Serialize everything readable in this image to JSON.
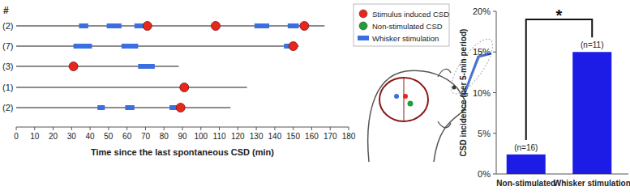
{
  "chart_data": [
    {
      "type": "timeline",
      "row_header": "#",
      "x_label": "Time since the last spontaneous CSD (min)",
      "xlim": [
        0,
        180
      ],
      "xticks": [
        0,
        10,
        20,
        30,
        40,
        50,
        60,
        70,
        80,
        90,
        100,
        110,
        120,
        130,
        140,
        150,
        160,
        170,
        180
      ],
      "series": [
        {
          "name": "Stimulus induced CSD",
          "color": "#e8261c",
          "marker": "circle"
        },
        {
          "name": "Non-stimulated CSD",
          "color": "#1f9e3c",
          "marker": "circle"
        },
        {
          "name": "Whisker stimulation",
          "color": "#3a6fe2",
          "marker": "rect"
        }
      ],
      "rows": [
        {
          "label": "(2)",
          "line_end": 167,
          "stimulation": [
            [
              34,
              39
            ],
            [
              49,
              57
            ],
            [
              64,
              70
            ],
            [
              129,
              137
            ],
            [
              147,
              153
            ]
          ],
          "stimulus_induced_csd": [
            71,
            108,
            156
          ]
        },
        {
          "label": "(7)",
          "line_end": 153,
          "stimulation": [
            [
              31,
              41
            ],
            [
              57,
              66
            ],
            [
              145,
              151
            ]
          ],
          "stimulus_induced_csd": [
            150
          ]
        },
        {
          "label": "(3)",
          "line_end": 88,
          "stimulation": [
            [
              30,
              32
            ],
            [
              66,
              75
            ]
          ],
          "stimulus_induced_csd": [
            31
          ]
        },
        {
          "label": "(1)",
          "line_end": 125,
          "stimulation": [
            [
              89,
              92
            ]
          ],
          "stimulus_induced_csd": [
            91
          ]
        },
        {
          "label": "(2)",
          "line_end": 116,
          "stimulation": [
            [
              44,
              48
            ],
            [
              59,
              64
            ],
            [
              83,
              90
            ]
          ],
          "stimulus_induced_csd": [
            89
          ]
        }
      ]
    },
    {
      "type": "bar",
      "categories": [
        "Non-stimulated",
        "Whisker stimulation"
      ],
      "values": [
        2.4,
        15
      ],
      "color": "#1c1ce6",
      "y_label": "CSD incidence (per 5-min period)",
      "ylim": [
        0,
        20
      ],
      "yticks": [
        {
          "value": 0,
          "label": "0%"
        },
        {
          "value": 5,
          "label": "5%"
        },
        {
          "value": 10,
          "label": "10%"
        },
        {
          "value": 15,
          "label": "15%"
        },
        {
          "value": 20,
          "label": "20%"
        }
      ],
      "annotations": [
        "(n=16)",
        "(n=11)"
      ],
      "significance": "*"
    }
  ]
}
